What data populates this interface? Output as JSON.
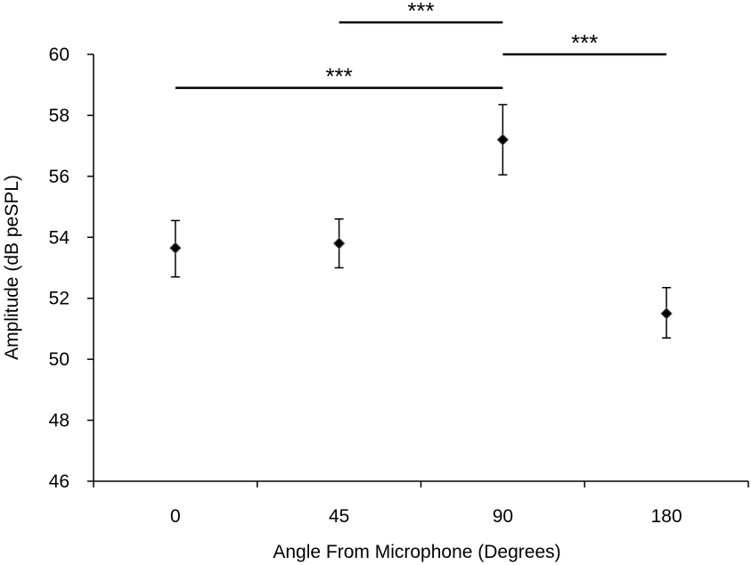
{
  "chart_data": {
    "type": "scatter",
    "title": "",
    "xlabel": "Angle From Microphone (Degrees)",
    "ylabel": "Amplitude (dB peSPL)",
    "categories": [
      "0",
      "45",
      "90",
      "180"
    ],
    "ylim": [
      46,
      60
    ],
    "yticks": [
      46,
      48,
      50,
      52,
      54,
      56,
      58,
      60
    ],
    "grid": false,
    "legend": "none",
    "marker": "diamond",
    "marker_color": "#000000",
    "series": [
      {
        "values": [
          53.65,
          53.8,
          57.2,
          51.5
        ],
        "error_low": [
          52.7,
          53.0,
          56.05,
          50.7
        ],
        "error_high": [
          54.55,
          54.6,
          58.35,
          52.35
        ]
      }
    ],
    "significance": [
      {
        "from": "45",
        "to": "90",
        "label": "***",
        "y": 61.05
      },
      {
        "from": "90",
        "to": "180",
        "label": "***",
        "y": 60.0
      },
      {
        "from": "0",
        "to": "90",
        "label": "***",
        "y": 58.9
      }
    ]
  }
}
